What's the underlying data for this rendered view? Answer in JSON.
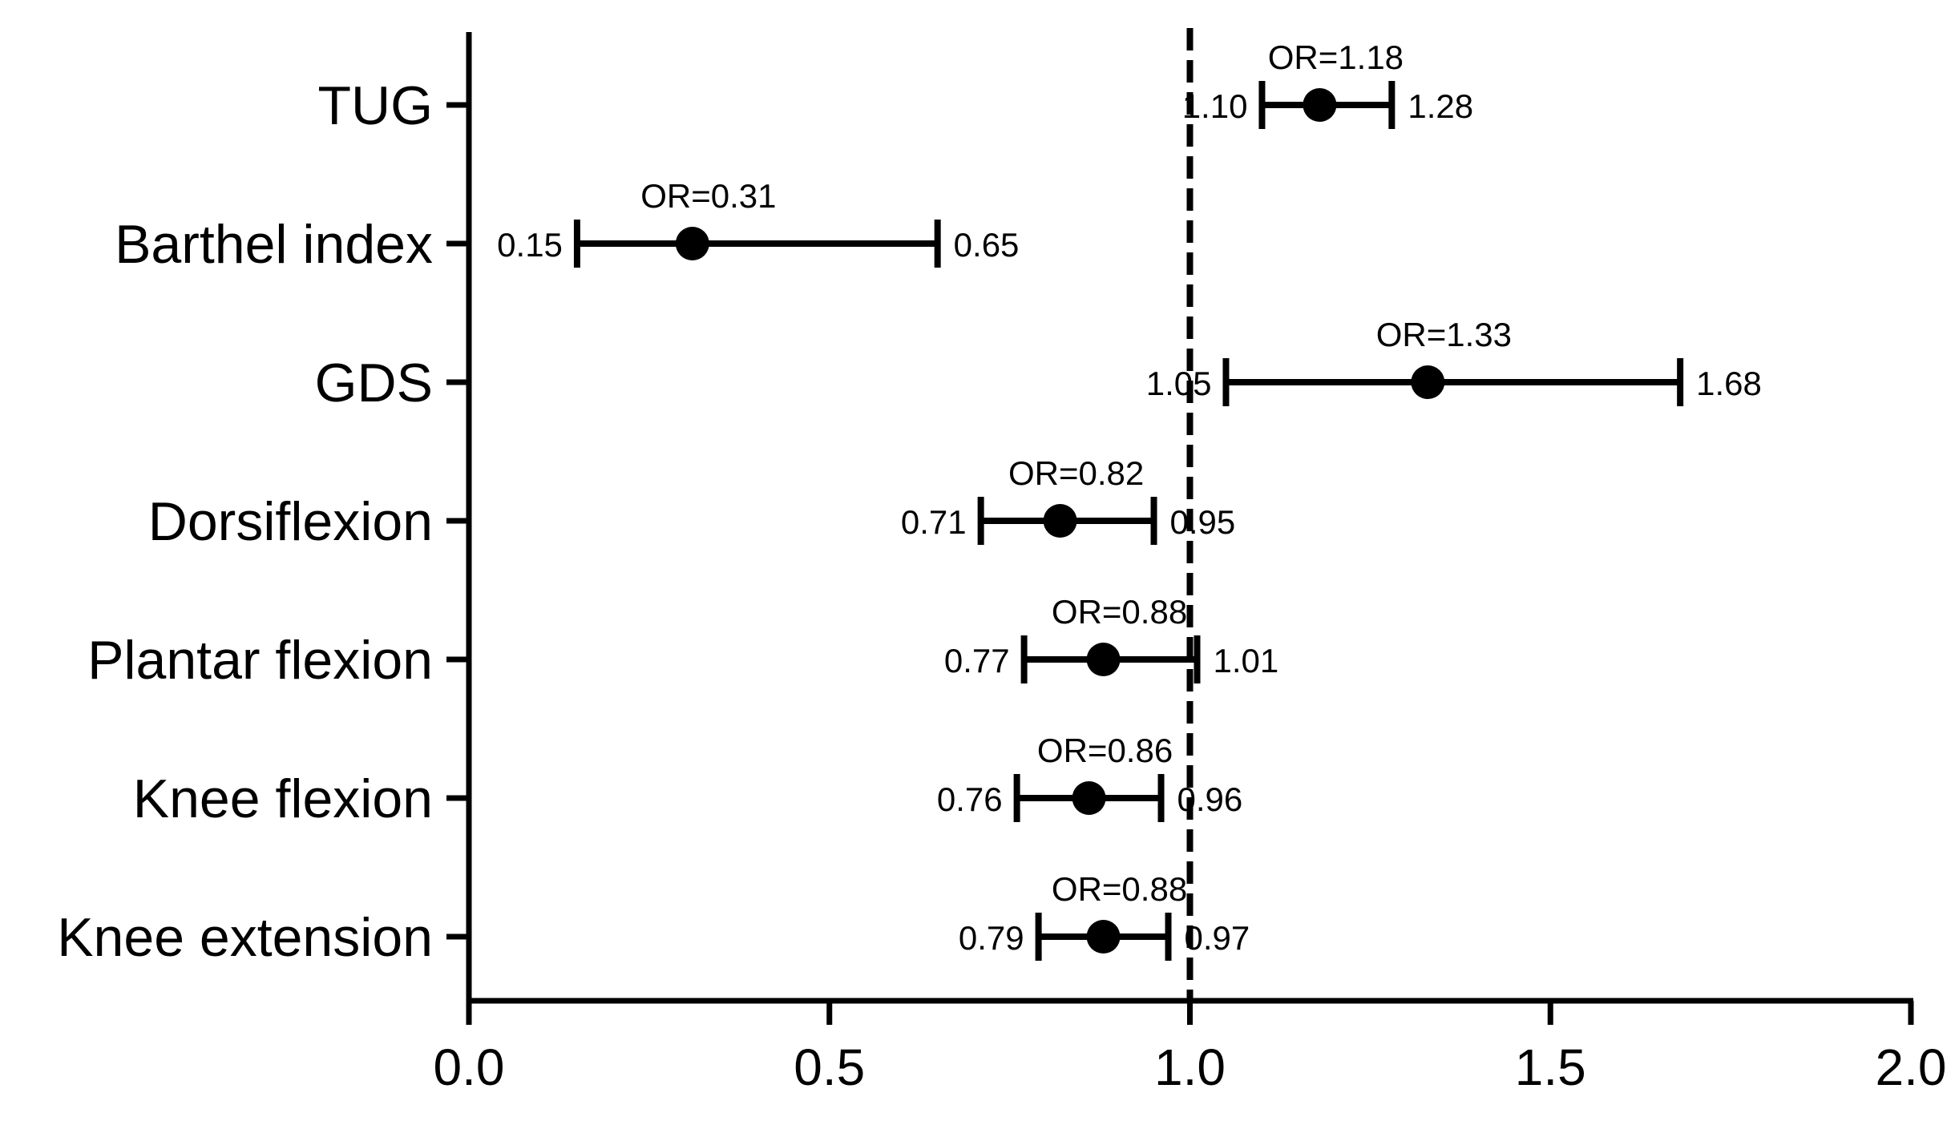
{
  "chart_data": {
    "type": "forest",
    "title": "",
    "xlabel": "",
    "ylabel": "",
    "xlim": [
      0,
      2
    ],
    "x_ticks": [
      "0.0",
      "0.5",
      "1.0",
      "1.5",
      "2.0"
    ],
    "reference_line": 1.0,
    "grid": false,
    "rows": [
      {
        "label": "TUG",
        "or": 1.18,
        "lower": 1.1,
        "upper": 1.28,
        "or_text": "OR=1.18",
        "lower_text": "1.10",
        "upper_text": "1.28"
      },
      {
        "label": "Barthel index",
        "or": 0.31,
        "lower": 0.15,
        "upper": 0.65,
        "or_text": "OR=0.31",
        "lower_text": "0.15",
        "upper_text": "0.65"
      },
      {
        "label": "GDS",
        "or": 1.33,
        "lower": 1.05,
        "upper": 1.68,
        "or_text": "OR=1.33",
        "lower_text": "1.05",
        "upper_text": "1.68"
      },
      {
        "label": "Dorsiflexion",
        "or": 0.82,
        "lower": 0.71,
        "upper": 0.95,
        "or_text": "OR=0.82",
        "lower_text": "0.71",
        "upper_text": "0.95"
      },
      {
        "label": "Plantar flexion",
        "or": 0.88,
        "lower": 0.77,
        "upper": 1.01,
        "or_text": "OR=0.88",
        "lower_text": "0.77",
        "upper_text": "1.01"
      },
      {
        "label": "Knee flexion",
        "or": 0.86,
        "lower": 0.76,
        "upper": 0.96,
        "or_text": "OR=0.86",
        "lower_text": "0.76",
        "upper_text": "0.96"
      },
      {
        "label": "Knee extension",
        "or": 0.88,
        "lower": 0.79,
        "upper": 0.97,
        "or_text": "OR=0.88",
        "lower_text": "0.79",
        "upper_text": "0.97"
      }
    ],
    "colors": {
      "ink": "#000000",
      "background": "#ffffff"
    }
  }
}
